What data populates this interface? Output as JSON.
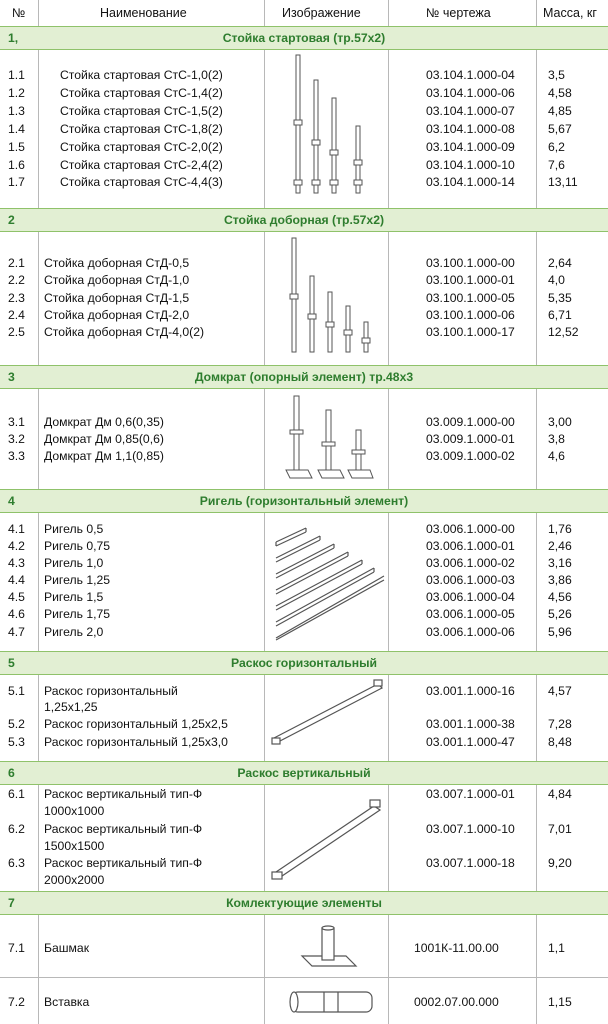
{
  "header": {
    "num": "№",
    "name": "Наименование",
    "image": "Изображение",
    "drawing": "№ чертежа",
    "mass": "Масса, кг"
  },
  "sections": [
    {
      "num": "1,",
      "title": "Стойка стартовая (тр.57х2)",
      "items": [
        {
          "num": "1.1",
          "name": "Стойка стартовая СтС-1,0(2)",
          "code": "03.104.1.000-04",
          "mass": "3,5"
        },
        {
          "num": "1.2",
          "name": "Стойка стартовая СтС-1,4(2)",
          "code": "03.104.1.000-06",
          "mass": "4,58"
        },
        {
          "num": "1.3",
          "name": "Стойка стартовая СтС-1,5(2)",
          "code": "03.104.1.000-07",
          "mass": "4,85"
        },
        {
          "num": "1.4",
          "name": "Стойка стартовая СтС-1,8(2)",
          "code": "03.104.1.000-08",
          "mass": "5,67"
        },
        {
          "num": "1.5",
          "name": "Стойка стартовая СтС-2,0(2)",
          "code": "03.104.1.000-09",
          "mass": "6,2"
        },
        {
          "num": "1.6",
          "name": "Стойка стартовая СтС-2,4(2)",
          "code": "03.104.1.000-10",
          "mass": "7,6"
        },
        {
          "num": "1.7",
          "name": "Стойка стартовая СтС-4,4(3)",
          "code": "03.104.1.000-14",
          "mass": "13,11"
        }
      ]
    },
    {
      "num": "2",
      "title": "Стойка доборная (тр.57х2)",
      "items": [
        {
          "num": "2.1",
          "name": "Стойка доборная СтД-0,5",
          "code": "03.100.1.000-00",
          "mass": "2,64"
        },
        {
          "num": "2.2",
          "name": "Стойка доборная СтД-1,0",
          "code": "03.100.1.000-01",
          "mass": "4,0"
        },
        {
          "num": "2.3",
          "name": "Стойка доборная СтД-1,5",
          "code": "03.100.1.000-05",
          "mass": "5,35"
        },
        {
          "num": "2.4",
          "name": "Стойка доборная СтД-2,0",
          "code": "03.100.1.000-06",
          "mass": "6,71"
        },
        {
          "num": "2.5",
          "name": "Стойка доборная СтД-4,0(2)",
          "code": "03.100.1.000-17",
          "mass": "12,52"
        }
      ]
    },
    {
      "num": "3",
      "title": "Домкрат (опорный элемент) тр.48х3",
      "items": [
        {
          "num": "3.1",
          "name": "Домкрат Дм 0,6(0,35)",
          "code": "03.009.1.000-00",
          "mass": "3,00"
        },
        {
          "num": "3.2",
          "name": "Домкрат Дм 0,85(0,6)",
          "code": "03.009.1.000-01",
          "mass": "3,8"
        },
        {
          "num": "3.3",
          "name": "Домкрат Дм 1,1(0,85)",
          "code": "03.009.1.000-02",
          "mass": "4,6"
        }
      ]
    },
    {
      "num": "4",
      "title": "Ригель (горизонтальный элемент)",
      "items": [
        {
          "num": "4.1",
          "name": "Ригель 0,5",
          "code": "03.006.1.000-00",
          "mass": "1,76"
        },
        {
          "num": "4.2",
          "name": "Ригель 0,75",
          "code": "03.006.1.000-01",
          "mass": "2,46"
        },
        {
          "num": "4.3",
          "name": "Ригель 1,0",
          "code": "03.006.1.000-02",
          "mass": "3,16"
        },
        {
          "num": "4.4",
          "name": "Ригель 1,25",
          "code": "03.006.1.000-03",
          "mass": "3,86"
        },
        {
          "num": "4.5",
          "name": "Ригель 1,5",
          "code": "03.006.1.000-04",
          "mass": "4,56"
        },
        {
          "num": "4.6",
          "name": "Ригель 1,75",
          "code": "03.006.1.000-05",
          "mass": "5,26"
        },
        {
          "num": "4.7",
          "name": "Ригель 2,0",
          "code": "03.006.1.000-06",
          "mass": "5,96"
        }
      ]
    },
    {
      "num": "5",
      "title": "Раскос горизонтальный",
      "items": [
        {
          "num": "5.1",
          "name": "Раскос горизонтальный",
          "name2": "1,25х1,25",
          "code": "03.001.1.000-16",
          "mass": "4,57"
        },
        {
          "num": "5.2",
          "name": "Раскос горизонтальный 1,25х2,5",
          "code": "03.001.1.000-38",
          "mass": "7,28"
        },
        {
          "num": "5.3",
          "name": "Раскос горизонтальный 1,25х3,0",
          "code": "03.001.1.000-47",
          "mass": "8,48"
        }
      ]
    },
    {
      "num": "6",
      "title": "Раскос вертикальный",
      "items": [
        {
          "num": "6.1",
          "name": "Раскос вертикальный тип-Ф",
          "name2": "1000х1000",
          "code": "03.007.1.000-01",
          "mass": "4,84"
        },
        {
          "num": "6.2",
          "name": "Раскос вертикальный тип-Ф",
          "name2": "1500х1500",
          "code": "03.007.1.000-10",
          "mass": "7,01"
        },
        {
          "num": "6.3",
          "name": "Раскос вертикальный тип-Ф",
          "name2": "2000х2000",
          "code": "03.007.1.000-18",
          "mass": "9,20"
        }
      ]
    },
    {
      "num": "7",
      "title": "Комлектующие элементы",
      "items": [
        {
          "num": "7.1",
          "name": "Башмак",
          "code": "1001К-11.00.00",
          "mass": "1,1"
        },
        {
          "num": "7.2",
          "name": "Вставка",
          "code": "0002.07.00.000",
          "mass": "1,15"
        }
      ]
    }
  ]
}
